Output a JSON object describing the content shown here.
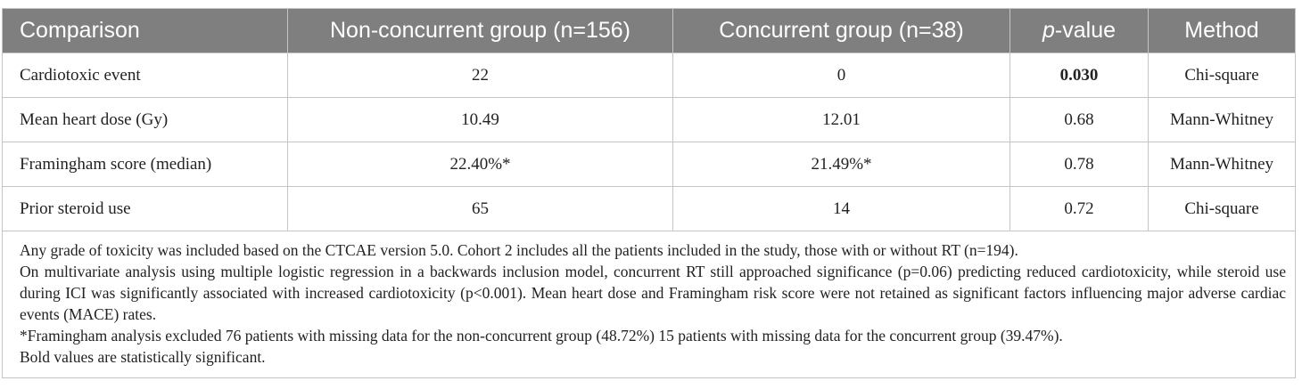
{
  "table": {
    "headers": {
      "comparison": "Comparison",
      "non_concurrent": "Non-concurrent group (n=156)",
      "concurrent": "Concurrent group (n=38)",
      "p_value_italic": "p",
      "p_value_rest": "-value",
      "method": "Method"
    },
    "rows": [
      {
        "comparison": "Cardiotoxic event",
        "non_concurrent": "22",
        "concurrent": "0",
        "p_value": "0.030",
        "method": "Chi-square"
      },
      {
        "comparison": "Mean heart dose (Gy)",
        "non_concurrent": "10.49",
        "concurrent": "12.01",
        "p_value": "0.68",
        "method": "Mann-Whitney"
      },
      {
        "comparison": "Framingham score (median)",
        "non_concurrent": "22.40%*",
        "concurrent": "21.49%*",
        "p_value": "0.78",
        "method": "Mann-Whitney"
      },
      {
        "comparison": "Prior steroid use",
        "non_concurrent": "65",
        "concurrent": "14",
        "p_value": "0.72",
        "method": "Chi-square"
      }
    ],
    "notes": [
      "Any grade of toxicity was included based on the CTCAE version 5.0. Cohort 2 includes all the patients included in the study, those with or without RT (n=194).",
      "On multivariate analysis using multiple logistic regression in a backwards inclusion model, concurrent RT still approached significance (p=0.06) predicting reduced cardiotoxicity, while steroid use during ICI was significantly associated with increased cardiotoxicity (p<0.001). Mean heart dose and Framingham risk score were not retained as significant factors influencing major adverse cardiac events (MACE) rates.",
      "*Framingham analysis excluded 76 patients with missing data for the non-concurrent group (48.72%) 15 patients with missing data for the concurrent group (39.47%).",
      "Bold values are statistically significant."
    ]
  }
}
